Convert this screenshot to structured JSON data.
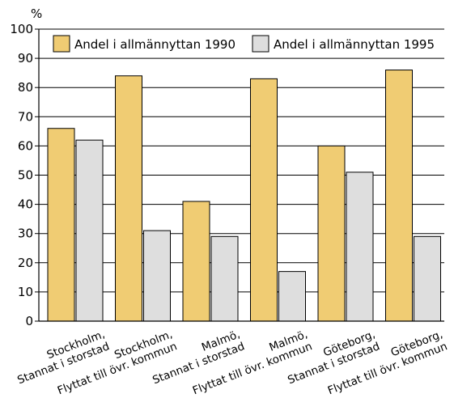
{
  "chart_data": {
    "type": "bar",
    "unit_label": "%",
    "ylim": [
      0,
      100
    ],
    "yticks": [
      0,
      10,
      20,
      30,
      40,
      50,
      60,
      70,
      80,
      90,
      100
    ],
    "grid": true,
    "legend_position": "top",
    "categories": [
      [
        "Stockholm,",
        "Stannat i storstad"
      ],
      [
        "Stockholm,",
        "Flyttat till övr. kommun"
      ],
      [
        "Malmö,",
        "Stannat i storstad"
      ],
      [
        "Malmö,",
        "Flyttat till övr. kommun"
      ],
      [
        "Göteborg,",
        "Stannat i storstad"
      ],
      [
        "Göteborg,",
        "Flyttat till övr. kommun"
      ]
    ],
    "series": [
      {
        "name": "Andel i allmännyttan 1990",
        "color": "#f0cc73",
        "values": [
          66,
          84,
          41,
          83,
          60,
          86
        ]
      },
      {
        "name": "Andel i allmännyttan 1995",
        "color": "#dedede",
        "values": [
          62,
          31,
          29,
          17,
          51,
          29
        ]
      }
    ]
  }
}
